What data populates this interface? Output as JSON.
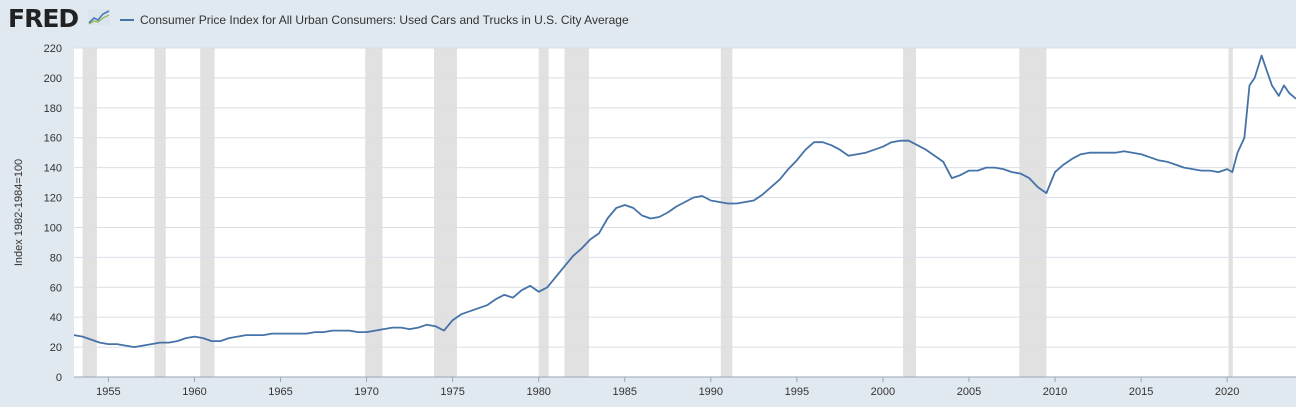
{
  "header": {
    "logo": "FRED",
    "logo_icon": "fred-chart-trend-icon"
  },
  "colors": {
    "background": "#e1e9f0",
    "plot_background": "#ffffff",
    "line": "#4572a7",
    "recession": "#e1e1e1"
  },
  "chart_data": {
    "type": "line",
    "title": "",
    "xlabel": "",
    "ylabel": "Index 1982-1984=100",
    "xlim": [
      1953.0,
      2024.0
    ],
    "ylim": [
      0,
      220
    ],
    "x_ticks": [
      1955,
      1960,
      1965,
      1970,
      1975,
      1980,
      1985,
      1990,
      1995,
      2000,
      2005,
      2010,
      2015,
      2020
    ],
    "x_tick_labels": [
      "1955",
      "1960",
      "1965",
      "1970",
      "1975",
      "1980",
      "1985",
      "1990",
      "1995",
      "2000",
      "2005",
      "2010",
      "2015",
      "2020"
    ],
    "y_ticks": [
      0,
      20,
      40,
      60,
      80,
      100,
      120,
      140,
      160,
      180,
      200,
      220
    ],
    "y_tick_labels": [
      "0",
      "20",
      "40",
      "60",
      "80",
      "100",
      "120",
      "140",
      "160",
      "180",
      "200",
      "220"
    ],
    "grid": true,
    "legend_position": "top-left",
    "recessions": [
      [
        1953.5,
        1954.33
      ],
      [
        1957.67,
        1958.33
      ],
      [
        1960.33,
        1961.17
      ],
      [
        1969.92,
        1970.92
      ],
      [
        1973.92,
        1975.25
      ],
      [
        1980.0,
        1980.58
      ],
      [
        1981.5,
        1982.92
      ],
      [
        1990.58,
        1991.25
      ],
      [
        2001.17,
        2001.92
      ],
      [
        2007.92,
        2009.5
      ],
      [
        2020.08,
        2020.33
      ]
    ],
    "series": [
      {
        "name": "Consumer Price Index for All Urban Consumers: Used Cars and Trucks in U.S. City Average",
        "x": [
          1953.0,
          1953.5,
          1954.0,
          1954.5,
          1955.0,
          1955.5,
          1956.0,
          1956.5,
          1957.0,
          1957.5,
          1958.0,
          1958.5,
          1959.0,
          1959.5,
          1960.0,
          1960.5,
          1961.0,
          1961.5,
          1962.0,
          1962.5,
          1963.0,
          1963.5,
          1964.0,
          1964.5,
          1965.0,
          1965.5,
          1966.0,
          1966.5,
          1967.0,
          1967.5,
          1968.0,
          1968.5,
          1969.0,
          1969.5,
          1970.0,
          1970.5,
          1971.0,
          1971.5,
          1972.0,
          1972.5,
          1973.0,
          1973.5,
          1974.0,
          1974.5,
          1975.0,
          1975.5,
          1976.0,
          1976.5,
          1977.0,
          1977.5,
          1978.0,
          1978.5,
          1979.0,
          1979.5,
          1980.0,
          1980.5,
          1981.0,
          1981.5,
          1982.0,
          1982.5,
          1983.0,
          1983.5,
          1984.0,
          1984.5,
          1985.0,
          1985.5,
          1986.0,
          1986.5,
          1987.0,
          1987.5,
          1988.0,
          1988.5,
          1989.0,
          1989.5,
          1990.0,
          1990.5,
          1991.0,
          1991.5,
          1992.0,
          1992.5,
          1993.0,
          1993.5,
          1994.0,
          1994.5,
          1995.0,
          1995.5,
          1996.0,
          1996.5,
          1997.0,
          1997.5,
          1998.0,
          1998.5,
          1999.0,
          1999.5,
          2000.0,
          2000.5,
          2001.0,
          2001.5,
          2002.0,
          2002.5,
          2003.0,
          2003.5,
          2004.0,
          2004.5,
          2005.0,
          2005.5,
          2006.0,
          2006.5,
          2007.0,
          2007.5,
          2008.0,
          2008.5,
          2009.0,
          2009.5,
          2010.0,
          2010.5,
          2011.0,
          2011.5,
          2012.0,
          2012.5,
          2013.0,
          2013.5,
          2014.0,
          2014.5,
          2015.0,
          2015.5,
          2016.0,
          2016.5,
          2017.0,
          2017.5,
          2018.0,
          2018.5,
          2019.0,
          2019.5,
          2020.0,
          2020.3,
          2020.6,
          2021.0,
          2021.3,
          2021.6,
          2022.0,
          2022.3,
          2022.6,
          2023.0,
          2023.3,
          2023.6,
          2024.0
        ],
        "values": [
          28,
          27,
          25,
          23,
          22,
          22,
          21,
          20,
          21,
          22,
          23,
          23,
          24,
          26,
          27,
          26,
          24,
          24,
          26,
          27,
          28,
          28,
          28,
          29,
          29,
          29,
          29,
          29,
          30,
          30,
          31,
          31,
          31,
          30,
          30,
          31,
          32,
          33,
          33,
          32,
          33,
          35,
          34,
          31,
          38,
          42,
          44,
          46,
          48,
          52,
          55,
          53,
          58,
          61,
          57,
          60,
          67,
          74,
          81,
          86,
          92,
          96,
          106,
          113,
          115,
          113,
          108,
          106,
          107,
          110,
          114,
          117,
          120,
          121,
          118,
          117,
          116,
          116,
          117,
          118,
          122,
          127,
          132,
          139,
          145,
          152,
          157,
          157,
          155,
          152,
          148,
          149,
          150,
          152,
          154,
          157,
          158,
          158,
          155,
          152,
          148,
          144,
          133,
          135,
          138,
          138,
          140,
          140,
          139,
          137,
          136,
          133,
          127,
          123,
          137,
          142,
          146,
          149,
          150,
          150,
          150,
          150,
          151,
          150,
          149,
          147,
          145,
          144,
          142,
          140,
          139,
          138,
          138,
          137,
          139,
          137,
          150,
          160,
          195,
          200,
          215,
          205,
          195,
          188,
          195,
          190,
          186
        ]
      }
    ]
  }
}
